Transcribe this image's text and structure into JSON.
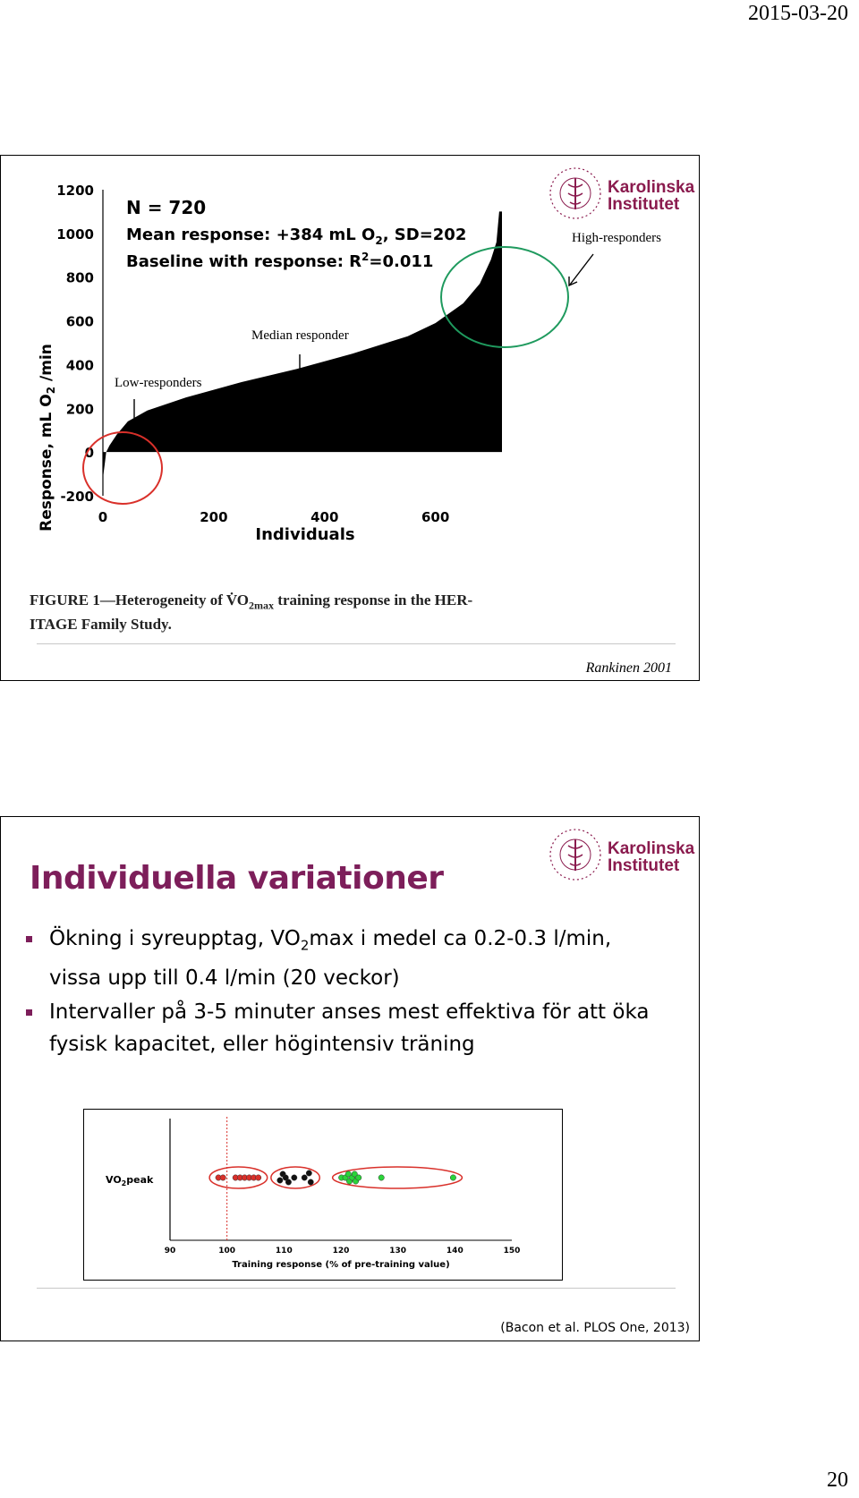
{
  "page": {
    "date": "2015-03-20",
    "page_number": "20"
  },
  "logo": {
    "line1": "Karolinska",
    "line2": "Institutet",
    "seal_text": "KAROLINSKA INSTITUTET ANNO 1810",
    "color": "#8a1b4e"
  },
  "slide1": {
    "annotations": {
      "high": "High-responders",
      "median": "Median responder",
      "low": "Low-responders"
    },
    "caption_line1": "FIGURE 1—Heterogeneity of V̇O",
    "caption_sub": "2max",
    "caption_rest": " training response in the HER-",
    "caption_line2": "ITAGE Family Study.",
    "citation": "Rankinen 2001",
    "circle_colors": {
      "low": "#d9302a",
      "high": "#1f9a5e"
    }
  },
  "chart_data": [
    {
      "type": "area",
      "stats": {
        "n": "N = 720",
        "mean_prefix": "Mean response: +384 mL O",
        "mean_sub": "2",
        "mean_suffix": ", SD=202",
        "baseline_prefix": "Baseline with response: R",
        "baseline_sup": "2",
        "baseline_suffix": "=0.011"
      },
      "ylabel_prefix": "Response, mL O",
      "ylabel_sub": "2",
      "ylabel_suffix": " /min",
      "xlabel": "Individuals",
      "ylim": [
        -200,
        1200
      ],
      "xlim": [
        0,
        720
      ],
      "yticks": [
        -200,
        0,
        200,
        400,
        600,
        800,
        1000,
        1200
      ],
      "xticks": [
        0,
        200,
        400,
        600
      ],
      "curve_points": [
        {
          "x": 0,
          "y": -120
        },
        {
          "x": 3,
          "y": -60
        },
        {
          "x": 6,
          "y": 0
        },
        {
          "x": 12,
          "y": 30
        },
        {
          "x": 25,
          "y": 80
        },
        {
          "x": 45,
          "y": 140
        },
        {
          "x": 80,
          "y": 190
        },
        {
          "x": 150,
          "y": 250
        },
        {
          "x": 250,
          "y": 320
        },
        {
          "x": 350,
          "y": 380
        },
        {
          "x": 450,
          "y": 450
        },
        {
          "x": 550,
          "y": 530
        },
        {
          "x": 600,
          "y": 590
        },
        {
          "x": 650,
          "y": 680
        },
        {
          "x": 680,
          "y": 770
        },
        {
          "x": 700,
          "y": 880
        },
        {
          "x": 710,
          "y": 960
        },
        {
          "x": 715,
          "y": 1100
        },
        {
          "x": 720,
          "y": 1100
        }
      ],
      "fill_color": "#000000"
    },
    {
      "type": "scatter",
      "ylabel_prefix": "VO",
      "ylabel_sub": "2",
      "ylabel_suffix": "peak",
      "xlabel": "Training response (% of pre-training value)",
      "xlim": [
        90,
        150
      ],
      "xticks": [
        90,
        100,
        110,
        120,
        130,
        140,
        150
      ],
      "reference_line_x": 100,
      "series": [
        {
          "color": "#d9302a",
          "points": [
            {
              "x": 98.5,
              "y": 0
            },
            {
              "x": 99.3,
              "y": 0
            },
            {
              "x": 101.5,
              "y": 0
            },
            {
              "x": 102.3,
              "y": 0
            },
            {
              "x": 103.1,
              "y": 0
            },
            {
              "x": 103.9,
              "y": 0
            },
            {
              "x": 104.7,
              "y": 0
            },
            {
              "x": 105.5,
              "y": 0
            }
          ]
        },
        {
          "color": "#111111",
          "points": [
            {
              "x": 109.3,
              "y": -0.3
            },
            {
              "x": 109.8,
              "y": 0.4
            },
            {
              "x": 110.3,
              "y": 0
            },
            {
              "x": 110.8,
              "y": -0.5
            },
            {
              "x": 111.8,
              "y": 0
            },
            {
              "x": 113.6,
              "y": 0
            },
            {
              "x": 114.4,
              "y": 0.5
            },
            {
              "x": 114.7,
              "y": -0.5
            }
          ]
        },
        {
          "color": "#2bd43a",
          "points": [
            {
              "x": 120.1,
              "y": 0
            },
            {
              "x": 120.8,
              "y": 0
            },
            {
              "x": 121.3,
              "y": 0.4
            },
            {
              "x": 121.5,
              "y": -0.4
            },
            {
              "x": 122.0,
              "y": 0
            },
            {
              "x": 122.4,
              "y": 0.4
            },
            {
              "x": 122.6,
              "y": -0.4
            },
            {
              "x": 123.1,
              "y": 0
            },
            {
              "x": 127.1,
              "y": 0
            },
            {
              "x": 139.7,
              "y": 0
            }
          ]
        }
      ],
      "group_ellipse_color": "#d9302a"
    }
  ],
  "slide2": {
    "title": "Individuella variationer",
    "bullet1_a": "Ökning i syreupptag, VO",
    "bullet1_sub": "2",
    "bullet1_b": "max i medel ca 0.2-0.3 l/min,",
    "bullet1_c": "vissa upp till 0.4 l/min (20 veckor)",
    "bullet2": "Intervaller på 3-5 minuter anses mest effektiva för att öka fysisk kapacitet, eller högintensiv träning",
    "citation": "(Bacon et al. PLOS One, 2013)",
    "bullet_color": "#7d1e5a"
  }
}
